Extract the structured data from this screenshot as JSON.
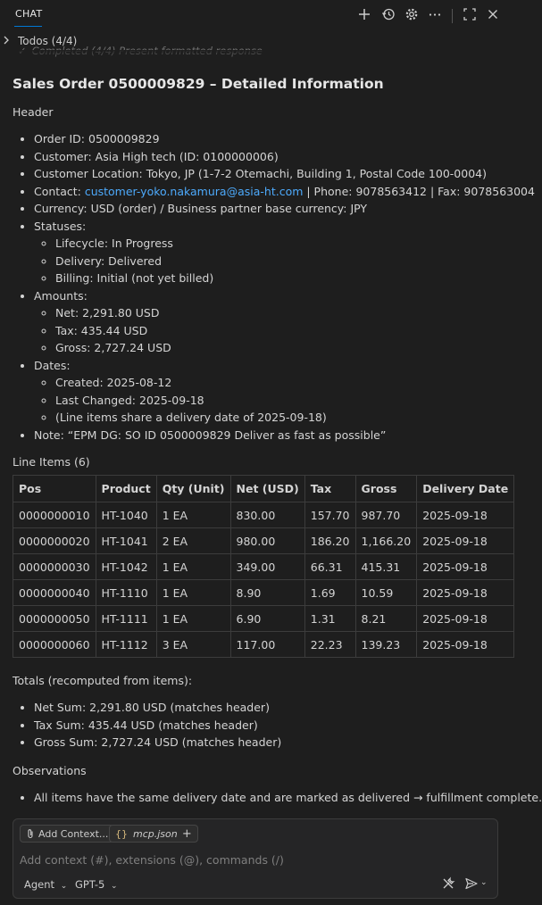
{
  "header": {
    "tab": "CHAT"
  },
  "todos": {
    "label": "Todos (4/4)",
    "ghost": "Completed (4/4) Present formatted response"
  },
  "doc": {
    "title": "Sales Order 0500009829 – Detailed Information",
    "header_label": "Header",
    "order_id": "Order ID: 0500009829",
    "customer": "Customer: Asia High tech (ID: 0100000006)",
    "location": "Customer Location: Tokyo, JP (1-7-2 Otemachi, Building 1, Postal Code 100-0004)",
    "contact_prefix": "Contact: ",
    "contact_email": "customer-yoko.nakamura@asia-ht.com",
    "contact_suffix": " | Phone: 9078563412 | Fax: 9078563004",
    "currency": "Currency: USD (order) / Business partner base currency: JPY",
    "statuses_label": "Statuses:",
    "statuses": [
      "Lifecycle: In Progress",
      "Delivery: Delivered",
      "Billing: Initial (not yet billed)"
    ],
    "amounts_label": "Amounts:",
    "amounts": [
      "Net: 2,291.80 USD",
      "Tax: 435.44 USD",
      "Gross: 2,727.24 USD"
    ],
    "dates_label": "Dates:",
    "dates": [
      "Created: 2025-08-12",
      "Last Changed: 2025-09-18",
      "(Line items share a delivery date of 2025-09-18)"
    ],
    "note": "Note: “EPM DG: SO ID 0500009829 Deliver as fast as possible”",
    "line_items_label": "Line Items (6)",
    "table": {
      "headers": [
        "Pos",
        "Product",
        "Qty (Unit)",
        "Net (USD)",
        "Tax",
        "Gross",
        "Delivery Date"
      ],
      "rows": [
        [
          "0000000010",
          "HT-1040",
          "1 EA",
          "830.00",
          "157.70",
          "987.70",
          "2025-09-18"
        ],
        [
          "0000000020",
          "HT-1041",
          "2 EA",
          "980.00",
          "186.20",
          "1,166.20",
          "2025-09-18"
        ],
        [
          "0000000030",
          "HT-1042",
          "1 EA",
          "349.00",
          "66.31",
          "415.31",
          "2025-09-18"
        ],
        [
          "0000000040",
          "HT-1110",
          "1 EA",
          "8.90",
          "1.69",
          "10.59",
          "2025-09-18"
        ],
        [
          "0000000050",
          "HT-1111",
          "1 EA",
          "6.90",
          "1.31",
          "8.21",
          "2025-09-18"
        ],
        [
          "0000000060",
          "HT-1112",
          "3 EA",
          "117.00",
          "22.23",
          "139.23",
          "2025-09-18"
        ]
      ]
    },
    "totals_label": "Totals (recomputed from items):",
    "totals": [
      "Net Sum: 2,291.80 USD (matches header)",
      "Tax Sum: 435.44 USD (matches header)",
      "Gross Sum: 2,727.24 USD (matches header)"
    ],
    "observations_label": "Observations",
    "observations": [
      "All items have the same delivery date and are marked as delivered → fulfillment complete."
    ]
  },
  "input": {
    "add_context": "Add Context...",
    "mcp_file": "mcp.json",
    "placeholder": "Add context (#), extensions (@), commands (/)",
    "mode": "Agent",
    "model": "GPT-5"
  }
}
